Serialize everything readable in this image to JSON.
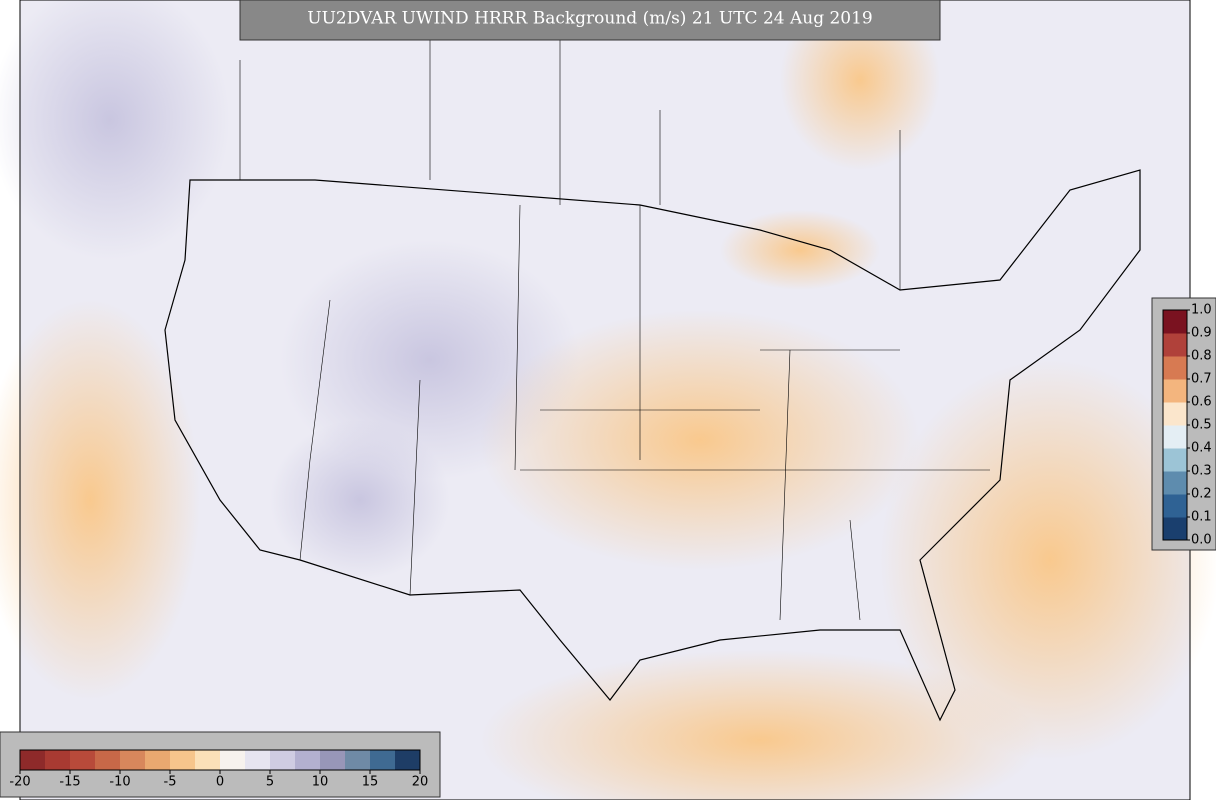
{
  "title": "UU2DVAR UWIND HRRR Background (m/s) 21 UTC 24 Aug 2019",
  "colorbar_bottom": {
    "lim": [
      -20,
      20
    ],
    "ticks": [
      -20,
      -15,
      -10,
      -5,
      0,
      5,
      10,
      15,
      20
    ],
    "colors": [
      "#8e2a2a",
      "#a83a32",
      "#b84a3a",
      "#c86848",
      "#d8875c",
      "#eaa870",
      "#f6c58c",
      "#fbe0b8",
      "#f7f2ee",
      "#e6e4f0",
      "#cfcce2",
      "#b3b0d0",
      "#9896b8",
      "#6f8aa6",
      "#3f6a92",
      "#1e3d66"
    ]
  },
  "colorbar_right": {
    "lim": [
      0,
      1
    ],
    "ticks": [
      {
        "value": 0,
        "label": "0.0"
      },
      0.1,
      0.2,
      0.3,
      0.4,
      0.5,
      0.6,
      0.7,
      0.8,
      0.9,
      {
        "value": 1,
        "label": "1.0"
      }
    ],
    "colors": [
      "#1a3f6e",
      "#2f6294",
      "#5e8cae",
      "#9cc4d6",
      "#e4eef4",
      "#fbe6cc",
      "#f3b57e",
      "#d77a52",
      "#b0413a",
      "#7a1220"
    ]
  }
}
